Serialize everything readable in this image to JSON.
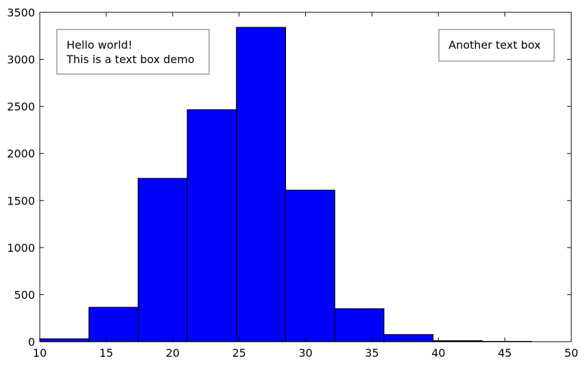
{
  "chart_data": {
    "type": "bar",
    "subtype": "histogram",
    "title": "",
    "xlabel": "",
    "ylabel": "",
    "xlim": [
      10,
      50
    ],
    "ylim": [
      0,
      3500
    ],
    "xticks": [
      10,
      15,
      20,
      25,
      30,
      35,
      40,
      45,
      50
    ],
    "yticks": [
      0,
      500,
      1000,
      1500,
      2000,
      2500,
      3000,
      3500
    ],
    "bin_edges": [
      10.0,
      13.7,
      17.4,
      21.1,
      24.8,
      28.5,
      32.2,
      35.9,
      39.6,
      43.3,
      47.0
    ],
    "values": [
      30,
      365,
      1735,
      2465,
      3340,
      1610,
      350,
      75,
      10,
      3
    ],
    "bar_color": "#0000ff",
    "edge_color": "#000000",
    "grid": false,
    "annotations": [
      {
        "lines": [
          "Hello world!",
          "This is a text box demo"
        ],
        "placement": "top-left"
      },
      {
        "lines": [
          "Another text box"
        ],
        "placement": "top-right"
      }
    ]
  }
}
